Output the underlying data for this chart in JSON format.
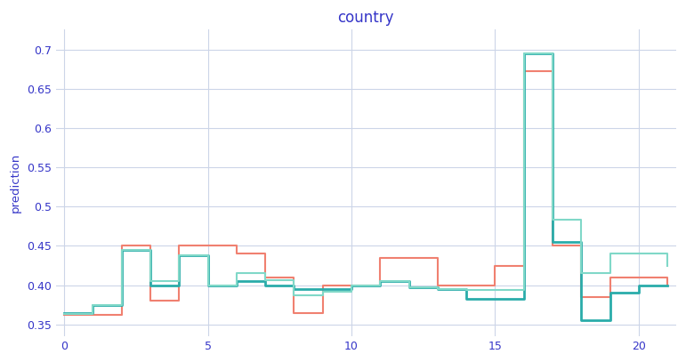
{
  "title": "country",
  "ylabel": "prediction",
  "title_color": "#3535c8",
  "ylabel_color": "#3535c8",
  "tick_color": "#3535c8",
  "background_color": "#ffffff",
  "grid_color": "#ccd5e8",
  "xlim": [
    -0.3,
    21.3
  ],
  "ylim": [
    0.335,
    0.725
  ],
  "yticks": [
    0.35,
    0.4,
    0.45,
    0.5,
    0.55,
    0.6,
    0.65,
    0.7
  ],
  "xticks": [
    0,
    5,
    10,
    15,
    20
  ],
  "line_salmon_color": "#F08070",
  "line_teal_dark_color": "#2AACAA",
  "line_teal_light_color": "#80D8C8",
  "salmon_x": [
    0,
    1,
    2,
    3,
    4,
    5,
    6,
    7,
    8,
    9,
    10,
    11,
    12,
    13,
    14,
    15,
    16,
    17,
    18,
    19,
    20,
    21
  ],
  "salmon_y": [
    0.362,
    0.362,
    0.45,
    0.38,
    0.45,
    0.45,
    0.44,
    0.41,
    0.365,
    0.4,
    0.4,
    0.435,
    0.435,
    0.4,
    0.4,
    0.425,
    0.672,
    0.45,
    0.385,
    0.41,
    0.41,
    0.4
  ],
  "teal_dark_x": [
    0,
    1,
    2,
    3,
    4,
    5,
    6,
    7,
    8,
    9,
    10,
    11,
    12,
    13,
    14,
    15,
    16,
    17,
    18,
    19,
    20,
    21
  ],
  "teal_dark_y": [
    0.365,
    0.375,
    0.445,
    0.4,
    0.438,
    0.4,
    0.405,
    0.4,
    0.395,
    0.395,
    0.4,
    0.405,
    0.397,
    0.395,
    0.383,
    0.383,
    0.695,
    0.455,
    0.355,
    0.39,
    0.4,
    0.4
  ],
  "teal_light_x": [
    0,
    1,
    2,
    3,
    4,
    5,
    6,
    7,
    8,
    9,
    10,
    11,
    12,
    13,
    14,
    15,
    16,
    17,
    18,
    19,
    20,
    21
  ],
  "teal_light_y": [
    0.363,
    0.375,
    0.445,
    0.405,
    0.438,
    0.4,
    0.415,
    0.406,
    0.387,
    0.392,
    0.4,
    0.405,
    0.397,
    0.395,
    0.394,
    0.394,
    0.695,
    0.483,
    0.415,
    0.44,
    0.44,
    0.425
  ]
}
